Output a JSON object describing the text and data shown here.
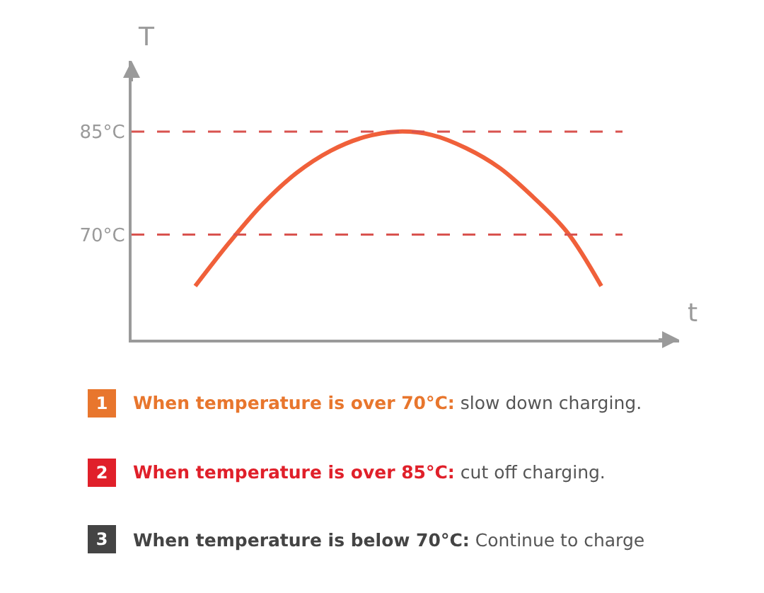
{
  "chart_data": {
    "type": "line",
    "xlabel": "t",
    "ylabel": "T",
    "categories": [
      null,
      null,
      null,
      null,
      null,
      null,
      null,
      null,
      null,
      null,
      null,
      null,
      null
    ],
    "series": [
      {
        "color": "#f0603a",
        "values": [
          62.5,
          68.8,
          74.5,
          79.0,
          82.2,
          84.2,
          85,
          84.5,
          82.6,
          79.7,
          75.4,
          70.3,
          62.5
        ]
      }
    ],
    "ylim": [
      54.7,
      95.3
    ],
    "yticks": [
      {
        "value": 70,
        "label": "70°C"
      },
      {
        "value": 85,
        "label": "85°C"
      }
    ],
    "tick_labels": "y",
    "marker": "none",
    "line_style": "solid",
    "ref_lines": [
      {
        "axis": "y",
        "value": 85,
        "color": "#d9534f",
        "line_style": "dashed"
      },
      {
        "axis": "y",
        "value": 70,
        "color": "#d9534f",
        "line_style": "dashed"
      }
    ],
    "annotations": [
      "1",
      "When temperature is over 70°C: slow down charging.",
      "2",
      "When temperature is over 85°C: cut off charging.",
      "3",
      "When temperature is below 70°C: Continue to charge"
    ]
  }
}
